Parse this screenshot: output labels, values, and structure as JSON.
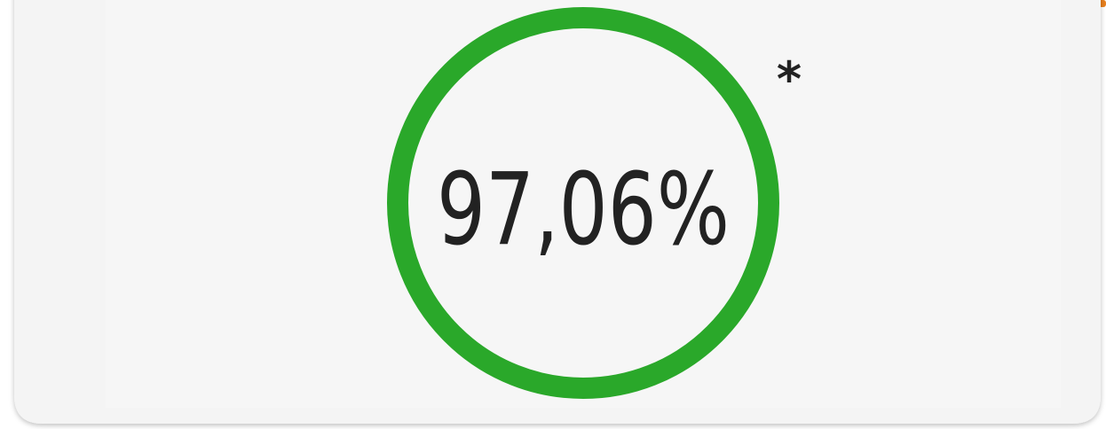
{
  "badge": {
    "value_text": "97,06%",
    "footnote_mark": "*"
  }
}
